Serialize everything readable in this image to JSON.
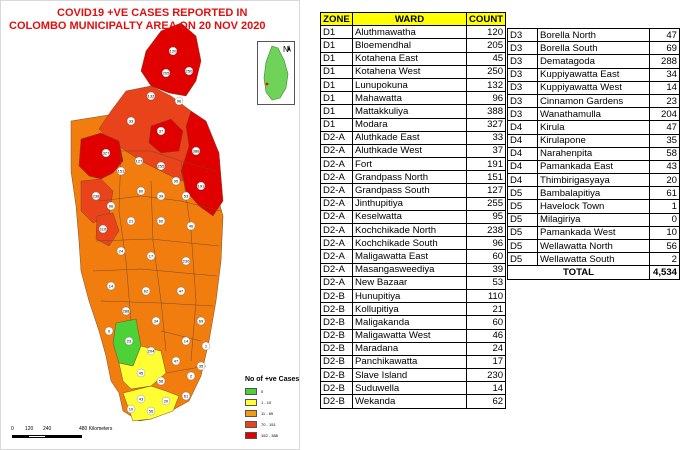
{
  "map": {
    "title_line1": "COVID19 +VE CASES REPORTED IN",
    "title_line2": "COLOMBO MUNICIPALTY AREA ON 20 NOV 2020",
    "north_letter": "N",
    "legend": {
      "title": "No of +ve Cases",
      "items": [
        {
          "label": "0",
          "color": "#4cd137"
        },
        {
          "label": "1 - 10",
          "color": "#ffff33"
        },
        {
          "label": "11 - 69",
          "color": "#f39c12"
        },
        {
          "label": "70 - 151",
          "color": "#e8431a"
        },
        {
          "label": "152 - 388",
          "color": "#e00000"
        }
      ]
    },
    "scalebar": {
      "labels": [
        "0",
        "120",
        "240",
        "480 Kilometers"
      ]
    },
    "colors": {
      "dark_red": "#e00000",
      "red_orange": "#e8431a",
      "orange": "#f07d0e",
      "yellow": "#ffff33",
      "green": "#4cd137",
      "inset_land": "#6fd35a",
      "inset_mark": "#ff0000"
    }
  },
  "table_left": {
    "headers": [
      "ZONE",
      "WARD",
      "COUNT"
    ],
    "rows": [
      [
        "D1",
        "Aluthmawatha",
        "120"
      ],
      [
        "D1",
        "Bloemendhal",
        "205"
      ],
      [
        "D1",
        "Kotahena East",
        "45"
      ],
      [
        "D1",
        "Kotahena West",
        "250"
      ],
      [
        "D1",
        "Lunupokuna",
        "132"
      ],
      [
        "D1",
        "Mahawatta",
        "96"
      ],
      [
        "D1",
        "Mattakkuliya",
        "388"
      ],
      [
        "D1",
        "Modara",
        "327"
      ],
      [
        "D2-A",
        "Aluthkade East",
        "33"
      ],
      [
        "D2-A",
        "Aluthkade West",
        "37"
      ],
      [
        "D2-A",
        "Fort",
        "191"
      ],
      [
        "D2-A",
        "Grandpass North",
        "151"
      ],
      [
        "D2-A",
        "Grandpass South",
        "127"
      ],
      [
        "D2-A",
        "Jinthupitiya",
        "255"
      ],
      [
        "D2-A",
        "Keselwatta",
        "95"
      ],
      [
        "D2-A",
        "Kochchikade North",
        "238"
      ],
      [
        "D2-A",
        "Kochchikade South",
        "96"
      ],
      [
        "D2-A",
        "Maligawatta East",
        "60"
      ],
      [
        "D2-A",
        "Masangasweediya",
        "39"
      ],
      [
        "D2-A",
        "New Bazaar",
        "53"
      ],
      [
        "D2-B",
        "Hunupitiya",
        "110"
      ],
      [
        "D2-B",
        "Kollupitiya",
        "21"
      ],
      [
        "D2-B",
        "Maligakanda",
        "60"
      ],
      [
        "D2-B",
        "Maligawatta West",
        "46"
      ],
      [
        "D2-B",
        "Maradana",
        "24"
      ],
      [
        "D2-B",
        "Panchikawatta",
        "17"
      ],
      [
        "D2-B",
        "Slave Island",
        "230"
      ],
      [
        "D2-B",
        "Suduwella",
        "14"
      ],
      [
        "D2-B",
        "Wekanda",
        "62"
      ]
    ]
  },
  "table_right": {
    "rows": [
      [
        "D3",
        "Borella North",
        "47"
      ],
      [
        "D3",
        "Borella South",
        "69"
      ],
      [
        "D3",
        "Dematagoda",
        "288"
      ],
      [
        "D3",
        "Kuppiyawatta East",
        "34"
      ],
      [
        "D3",
        "Kuppiyawatta West",
        "14"
      ],
      [
        "D3",
        "Cinnamon Gardens",
        "23"
      ],
      [
        "D3",
        "Wanathamulla",
        "204"
      ],
      [
        "D4",
        "Kirula",
        "47"
      ],
      [
        "D4",
        "Kirulapone",
        "35"
      ],
      [
        "D4",
        "Narahenpita",
        "58"
      ],
      [
        "D4",
        "Pamankada East",
        "43"
      ],
      [
        "D4",
        "Thimbirigasyaya",
        "20"
      ],
      [
        "D5",
        "Bambalapitiya",
        "61"
      ],
      [
        "D5",
        "Havelock Town",
        "1"
      ],
      [
        "D5",
        "Milagiriya",
        "0"
      ],
      [
        "D5",
        "Pamankada West",
        "10"
      ],
      [
        "D5",
        "Wellawatta North",
        "56"
      ],
      [
        "D5",
        "Wellawatta South",
        "2"
      ]
    ],
    "total_label": "TOTAL",
    "total_value": "4,534"
  },
  "ward_labels": [
    "120",
    "205",
    "250",
    "132",
    "96",
    "388",
    "327",
    "33",
    "37",
    "191",
    "151",
    "127",
    "255",
    "95",
    "238",
    "96",
    "60",
    "39",
    "53",
    "110",
    "21",
    "60",
    "46",
    "24",
    "17",
    "230",
    "14",
    "62",
    "47",
    "69",
    "288",
    "34",
    "14",
    "23",
    "204",
    "47",
    "35",
    "58",
    "43",
    "20",
    "61",
    "1",
    "0",
    "10",
    "56",
    "2",
    "45"
  ]
}
